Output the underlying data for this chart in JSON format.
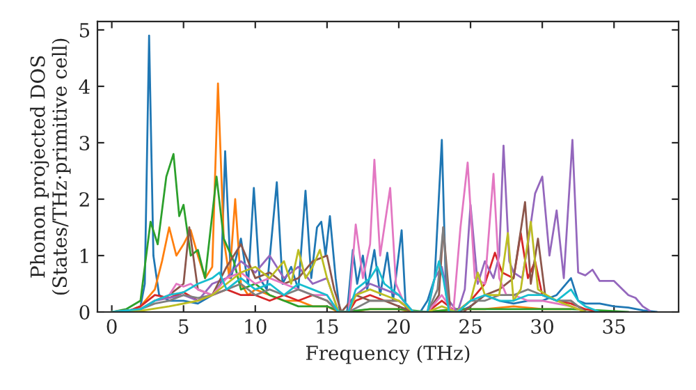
{
  "chart_data": {
    "type": "line",
    "xlabel": "Frequency (THz)",
    "ylabel": "Phonon projected DOS\n(States/THz·primitive cell)",
    "xlim": [
      -1,
      39.5
    ],
    "ylim": [
      0,
      5.15
    ],
    "xticks": [
      0,
      5,
      10,
      15,
      20,
      25,
      30,
      35
    ],
    "yticks": [
      0,
      1,
      2,
      3,
      4,
      5
    ],
    "grid": false,
    "legend": false,
    "series": [
      {
        "color": "#1f77b4",
        "x": [
          0,
          1,
          2,
          2.3,
          2.6,
          2.9,
          3.3,
          4,
          5,
          6,
          7,
          7.6,
          7.9,
          8.3,
          9,
          9.5,
          9.9,
          10.3,
          10.8,
          11.5,
          11.9,
          12.5,
          13,
          13.5,
          13.9,
          14.3,
          14.6,
          14.9,
          15.2,
          15.6,
          15.9,
          16.4,
          16.8,
          17.1,
          17.5,
          17.8,
          18.3,
          18.7,
          19.2,
          19.6,
          20.2,
          20.5,
          21.5,
          22,
          22.5,
          23,
          23.3,
          23.6,
          24.1,
          25,
          26,
          27,
          28,
          29,
          30,
          31,
          32,
          32.5,
          33,
          34,
          35,
          36,
          37,
          38
        ],
        "values": [
          0,
          0,
          0.1,
          0.5,
          4.9,
          1.0,
          0.3,
          0.2,
          0.2,
          0.15,
          0.3,
          0.5,
          2.85,
          0.6,
          1.3,
          0.5,
          2.2,
          0.6,
          0.4,
          2.3,
          0.5,
          0.8,
          0.4,
          2.15,
          0.6,
          1.5,
          1.6,
          1.0,
          1.7,
          0.6,
          0,
          0,
          1.1,
          0.5,
          1.0,
          0.4,
          1.1,
          0.3,
          1.05,
          0.2,
          1.45,
          0,
          0,
          0.2,
          0.6,
          3.05,
          0.3,
          0,
          0,
          0.1,
          0.3,
          0.2,
          0.15,
          0.2,
          0.2,
          0.3,
          0.6,
          0.2,
          0.15,
          0.15,
          0.1,
          0.08,
          0.03,
          0
        ]
      },
      {
        "color": "#ff7f0e",
        "x": [
          0,
          1,
          2,
          3,
          3.5,
          4,
          4.5,
          5,
          5.5,
          6,
          6.5,
          7,
          7.4,
          7.8,
          8.2,
          8.6,
          9,
          9.5,
          10,
          11,
          12,
          13,
          14,
          15,
          15.8,
          16.5,
          18,
          20,
          21,
          22,
          24,
          26,
          28,
          30,
          32
        ],
        "values": [
          0,
          0,
          0.1,
          0.4,
          0.9,
          1.5,
          1.0,
          1.2,
          1.45,
          1.0,
          0.6,
          0.8,
          4.05,
          1.3,
          0.6,
          2.0,
          0.5,
          0.3,
          0.4,
          0.3,
          0.2,
          0.2,
          0.1,
          0.1,
          0,
          0,
          0.05,
          0.05,
          0,
          0,
          0.05,
          0.05,
          0.1,
          0.05,
          0.05
        ]
      },
      {
        "color": "#2ca02c",
        "x": [
          0,
          1,
          2,
          2.7,
          3.2,
          3.8,
          4.3,
          4.7,
          5.0,
          5.5,
          6.0,
          6.5,
          7.3,
          7.8,
          8.5,
          9,
          10,
          11,
          12,
          13,
          14,
          15,
          16,
          18,
          20,
          22,
          24,
          26,
          28,
          30,
          32,
          34,
          36
        ],
        "values": [
          0,
          0.05,
          0.2,
          1.6,
          1.2,
          2.4,
          2.8,
          1.7,
          1.9,
          1.0,
          1.1,
          0.6,
          2.4,
          1.3,
          0.9,
          0.4,
          0.5,
          0.3,
          0.2,
          0.1,
          0.1,
          0.1,
          0,
          0.05,
          0.05,
          0,
          0.05,
          0.05,
          0.05,
          0.05,
          0.05,
          0.03,
          0
        ]
      },
      {
        "color": "#d62728",
        "x": [
          0,
          1,
          2,
          3,
          4,
          5,
          6,
          7,
          8,
          9,
          10,
          11,
          12,
          13,
          14,
          15,
          15.8,
          16.5,
          17,
          18,
          19,
          20,
          21,
          22,
          23,
          24,
          25,
          26,
          26.7,
          27.2,
          28,
          28.5,
          29,
          29.5,
          30,
          31,
          32,
          33,
          34
        ],
        "values": [
          0,
          0,
          0.1,
          0.3,
          0.25,
          0.35,
          0.2,
          0.3,
          0.4,
          0.3,
          0.3,
          0.2,
          0.3,
          0.2,
          0.3,
          0.2,
          0,
          0,
          0.2,
          0.3,
          0.2,
          0.2,
          0,
          0,
          0.2,
          0,
          0.2,
          0.5,
          1.05,
          0.7,
          0.6,
          1.4,
          0.6,
          0.9,
          0.3,
          0.2,
          0.15,
          0.05,
          0
        ]
      },
      {
        "color": "#9467bd",
        "x": [
          0,
          1,
          2,
          3,
          4,
          5,
          6,
          7,
          8,
          9,
          10,
          11,
          12,
          13,
          14,
          15,
          15.8,
          16.5,
          17,
          18,
          19,
          20,
          21,
          22,
          22.5,
          23,
          23.5,
          24.1,
          24.6,
          25,
          25.5,
          26,
          26.6,
          27,
          27.3,
          27.7,
          28,
          28.6,
          29,
          29.5,
          30,
          30.5,
          31,
          31.5,
          32.1,
          32.5,
          33,
          33.5,
          34,
          35,
          36,
          36.5,
          37,
          37.5
        ],
        "values": [
          0,
          0,
          0.05,
          0.2,
          0.25,
          0.3,
          0.2,
          0.5,
          0.6,
          0.9,
          0.7,
          1.0,
          0.6,
          0.8,
          0.5,
          0.6,
          0,
          0,
          0.3,
          0.5,
          0.4,
          0.3,
          0,
          0,
          0.6,
          0.8,
          0.2,
          0,
          0.4,
          1.9,
          0.5,
          0.9,
          0.6,
          1.0,
          2.95,
          0.9,
          0.7,
          0.6,
          1.2,
          2.1,
          2.4,
          1.0,
          1.8,
          0.6,
          3.05,
          0.7,
          0.65,
          0.75,
          0.55,
          0.55,
          0.3,
          0.25,
          0.1,
          0.02
        ]
      },
      {
        "color": "#8c564b",
        "x": [
          0,
          2,
          3,
          4,
          5,
          5.4,
          6,
          7,
          8,
          9,
          10,
          11,
          12,
          13,
          14,
          15,
          15.5,
          16,
          17,
          18,
          19,
          20,
          21,
          22,
          22.8,
          23.1,
          23.6,
          24.5,
          26,
          27,
          28,
          28.8,
          29.2,
          29.7,
          30.2,
          31,
          32,
          33
        ],
        "values": [
          0,
          0.05,
          0.2,
          0.3,
          0.5,
          1.5,
          0.4,
          0.3,
          0.8,
          1.2,
          0.6,
          0.7,
          0.5,
          0.6,
          0.9,
          1.0,
          0.4,
          0,
          0.3,
          0.2,
          0.2,
          0.1,
          0,
          0,
          0.3,
          1.5,
          0,
          0,
          0.3,
          0.4,
          0.6,
          1.95,
          0.5,
          1.3,
          0.3,
          0.2,
          0.2,
          0
        ]
      },
      {
        "color": "#e377c2",
        "x": [
          0,
          2,
          3,
          4,
          4.5,
          5,
          5.5,
          6,
          7,
          8,
          9,
          10,
          11,
          12,
          13,
          14,
          15,
          15.8,
          16.5,
          17,
          17.5,
          18,
          18.3,
          18.7,
          19.4,
          19.8,
          20.3,
          21,
          22,
          23,
          23.8,
          24.3,
          24.8,
          25.3,
          26,
          26.6,
          27,
          27.5,
          28,
          29,
          30,
          31,
          32,
          33
        ],
        "values": [
          0,
          0.05,
          0.2,
          0.3,
          0.5,
          0.45,
          0.5,
          0.4,
          0.3,
          0.6,
          0.7,
          0.5,
          0.6,
          0.5,
          0.4,
          0.3,
          0.3,
          0,
          0,
          1.55,
          0.6,
          1.2,
          2.7,
          1.0,
          2.2,
          0.5,
          0.2,
          0,
          0,
          0.3,
          0,
          1.5,
          2.65,
          0.6,
          0.5,
          2.45,
          0.6,
          0.3,
          0.3,
          0.2,
          0.2,
          0.15,
          0.1,
          0
        ]
      },
      {
        "color": "#7f7f7f",
        "x": [
          0,
          2,
          3,
          4,
          5,
          6,
          7,
          8,
          9,
          10,
          11,
          12,
          13,
          14,
          15,
          15.8,
          16.5,
          18,
          20,
          21,
          22,
          22.7,
          23.1,
          23.5,
          24.1,
          25,
          26,
          27,
          28,
          29,
          30,
          31,
          32,
          33
        ],
        "values": [
          0,
          0.05,
          0.15,
          0.2,
          0.3,
          0.25,
          0.3,
          0.4,
          0.5,
          0.3,
          0.4,
          0.3,
          0.4,
          0.3,
          0.2,
          0,
          0,
          0.2,
          0.2,
          0,
          0,
          0.4,
          1.5,
          0,
          0,
          0.2,
          0.2,
          0.3,
          0.3,
          0.4,
          0.3,
          0.2,
          0.2,
          0
        ]
      },
      {
        "color": "#bcbd22",
        "x": [
          0,
          2,
          4,
          6,
          7,
          8,
          9,
          10,
          11,
          12,
          12.5,
          13,
          13.5,
          14,
          14.5,
          15,
          15.8,
          16.5,
          17,
          18,
          19,
          20,
          21,
          22,
          23,
          24,
          25,
          25.5,
          26,
          27,
          27.6,
          28,
          28.5,
          29.2,
          29.7,
          30.3,
          31,
          32,
          33
        ],
        "values": [
          0,
          0.02,
          0.1,
          0.2,
          0.3,
          0.5,
          0.7,
          0.8,
          0.6,
          0.9,
          0.5,
          1.1,
          0.6,
          0.8,
          1.1,
          0.6,
          0,
          0,
          0.3,
          0.4,
          0.3,
          0.2,
          0,
          0,
          0.1,
          0,
          0.2,
          0.7,
          0.3,
          0.3,
          1.4,
          0.2,
          0.4,
          1.6,
          0.4,
          0.3,
          0.2,
          0.1,
          0
        ]
      },
      {
        "color": "#17becf",
        "x": [
          0,
          2,
          3,
          4,
          5,
          6,
          7,
          7.5,
          8,
          9,
          10,
          11,
          12,
          13,
          14,
          15,
          15.8,
          16.5,
          17,
          18,
          18.5,
          19,
          20,
          21,
          22,
          22.4,
          22.8,
          23.1,
          23.5,
          24.1,
          25,
          26,
          27,
          28,
          29,
          30,
          31,
          32,
          32.5,
          33,
          34
        ],
        "values": [
          0,
          0.05,
          0.2,
          0.3,
          0.35,
          0.5,
          0.6,
          0.7,
          0.4,
          0.6,
          0.4,
          0.5,
          0.3,
          0.5,
          0.4,
          0.3,
          0,
          0,
          0.4,
          0.6,
          0.8,
          0.5,
          0.3,
          0,
          0,
          0.5,
          0.9,
          0.6,
          0,
          0,
          0.2,
          0.3,
          0.2,
          0.2,
          0.3,
          0.3,
          0.2,
          0.4,
          0.2,
          0.1,
          0
        ]
      }
    ]
  }
}
